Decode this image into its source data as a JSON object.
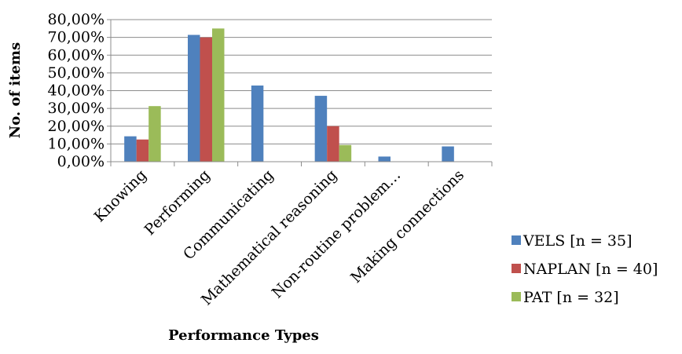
{
  "chart_data": {
    "type": "bar",
    "title": "",
    "xlabel": "Performance Types",
    "ylabel": "No. of items",
    "ylim": [
      0,
      80
    ],
    "yticks": [
      0,
      10,
      20,
      30,
      40,
      50,
      60,
      70,
      80
    ],
    "ytick_labels": [
      "0,00%",
      "10,00%",
      "20,00%",
      "30,00%",
      "40,00%",
      "50,00%",
      "60,00%",
      "70,00%",
      "80,00%"
    ],
    "grid": "horizontal",
    "legend_position": "right",
    "categories": [
      "Knowing",
      "Performing",
      "Communicating",
      "Mathematical reasoning",
      "Non-routine problem…",
      "Making connections"
    ],
    "series": [
      {
        "name": "VELS [n = 35]",
        "color": "#4f81bd",
        "values": [
          14.3,
          71.4,
          42.9,
          37.1,
          2.9,
          8.6
        ]
      },
      {
        "name": "NAPLAN [n = 40]",
        "color": "#c0504d",
        "values": [
          12.5,
          70.0,
          0,
          20.0,
          0,
          0
        ]
      },
      {
        "name": "PAT [n = 32]",
        "color": "#9bbb59",
        "values": [
          31.3,
          75.0,
          0,
          9.4,
          0,
          0
        ]
      }
    ]
  }
}
